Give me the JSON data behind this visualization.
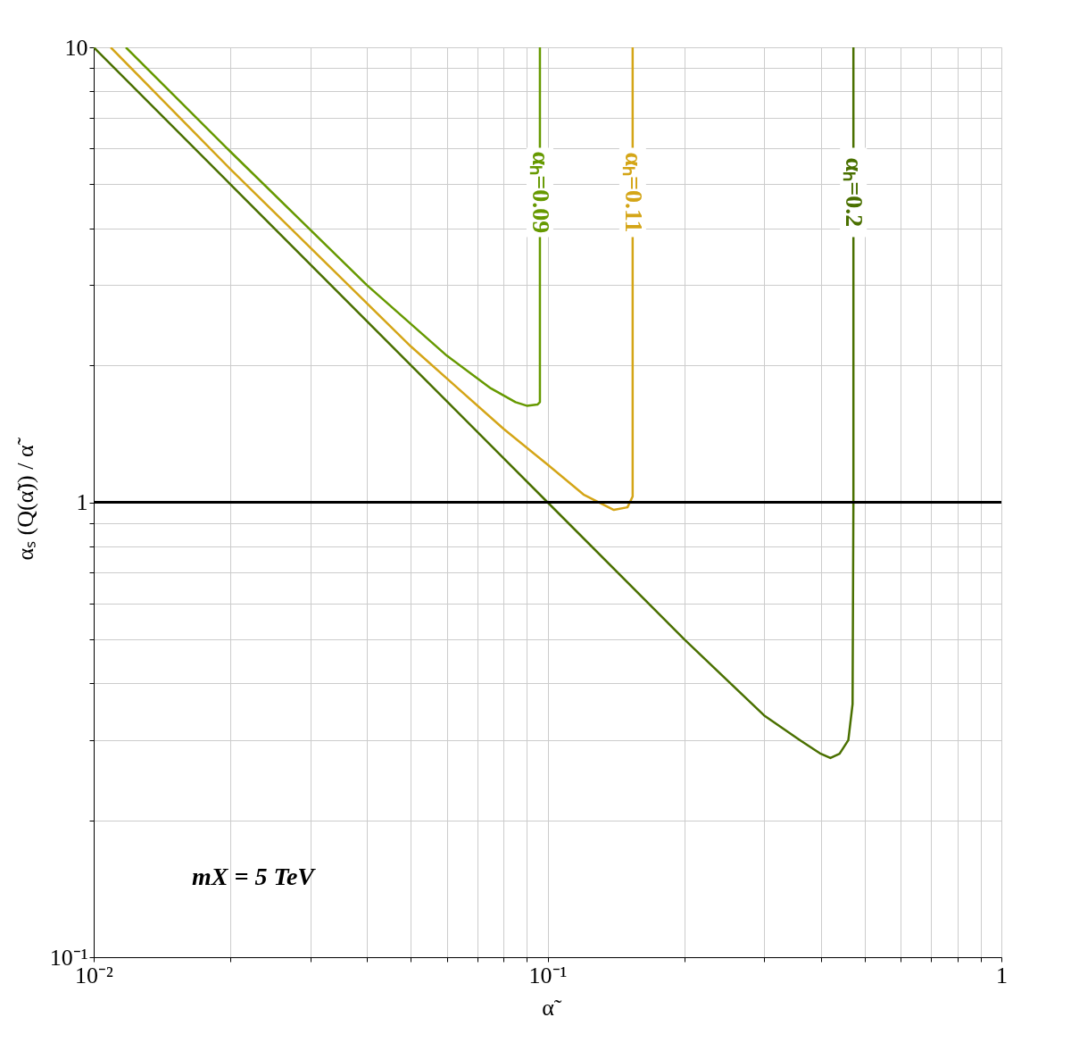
{
  "chart_data": {
    "type": "line",
    "xlabel": "α̃",
    "ylabel": "αₛ (Q(α̃)) / α̃",
    "log": "xy",
    "grid": true,
    "xlim": [
      0.01,
      1
    ],
    "ylim": [
      0.1,
      10
    ],
    "xticks": [
      {
        "value": 0.01,
        "label": "10⁻²"
      },
      {
        "value": 0.02,
        "label": null
      },
      {
        "value": 0.03,
        "label": null
      },
      {
        "value": 0.04,
        "label": null
      },
      {
        "value": 0.05,
        "label": null
      },
      {
        "value": 0.06,
        "label": null
      },
      {
        "value": 0.07,
        "label": null
      },
      {
        "value": 0.08,
        "label": null
      },
      {
        "value": 0.09,
        "label": null
      },
      {
        "value": 0.1,
        "label": "10⁻¹"
      },
      {
        "value": 0.2,
        "label": null
      },
      {
        "value": 0.3,
        "label": null
      },
      {
        "value": 0.4,
        "label": null
      },
      {
        "value": 0.5,
        "label": null
      },
      {
        "value": 0.6,
        "label": null
      },
      {
        "value": 0.7,
        "label": null
      },
      {
        "value": 0.8,
        "label": null
      },
      {
        "value": 0.9,
        "label": null
      },
      1
    ],
    "yticks": [
      {
        "value": 0.1,
        "label": "10⁻¹"
      },
      {
        "value": 0.2,
        "label": null
      },
      {
        "value": 0.3,
        "label": null
      },
      {
        "value": 0.4,
        "label": null
      },
      {
        "value": 0.5,
        "label": null
      },
      {
        "value": 0.6,
        "label": null
      },
      {
        "value": 0.7,
        "label": null
      },
      {
        "value": 0.8,
        "label": null
      },
      {
        "value": 0.9,
        "label": null
      },
      1,
      {
        "value": 2,
        "label": null
      },
      {
        "value": 3,
        "label": null
      },
      {
        "value": 4,
        "label": null
      },
      {
        "value": 5,
        "label": null
      },
      {
        "value": 6,
        "label": null
      },
      {
        "value": 7,
        "label": null
      },
      {
        "value": 8,
        "label": null
      },
      {
        "value": 9,
        "label": null
      },
      10
    ],
    "series": [
      {
        "color": "#669900",
        "x": [
          0.01177,
          0.02,
          0.04,
          0.06,
          0.075,
          0.085,
          0.09,
          0.095,
          0.0962,
          0.0962
        ],
        "values": [
          10,
          5.9,
          3.0,
          2.1,
          1.78,
          1.66,
          1.63,
          1.64,
          1.66,
          10
        ]
      },
      {
        "color": "#d4a517",
        "x": [
          0.0109,
          0.02,
          0.05,
          0.08,
          0.1,
          0.12,
          0.14,
          0.15,
          0.154,
          0.154
        ],
        "values": [
          10,
          5.4,
          2.2,
          1.45,
          1.21,
          1.04,
          0.962,
          0.975,
          1.03,
          10
        ]
      },
      {
        "color": "#4a7000",
        "x": [
          0.01,
          0.02,
          0.05,
          0.1,
          0.2,
          0.3,
          0.36,
          0.4,
          0.42,
          0.44,
          0.46,
          0.47,
          0.472,
          0.472
        ],
        "values": [
          10,
          5,
          2,
          1,
          0.5,
          0.34,
          0.3,
          0.28,
          0.274,
          0.28,
          0.3,
          0.36,
          1,
          10
        ]
      }
    ],
    "ref_lines": [
      {
        "axis": "y",
        "value": 1,
        "color": "#000000"
      }
    ],
    "annotations": [
      {
        "text": "αₕ=0.09",
        "x": 0.0962,
        "y": 4.8
      },
      {
        "text": "αₕ=0.11",
        "x": 0.154,
        "y": 4.8
      },
      {
        "text": "αₕ=0.2",
        "x": 0.472,
        "y": 4.8
      },
      "mX = 5 TeV"
    ]
  }
}
